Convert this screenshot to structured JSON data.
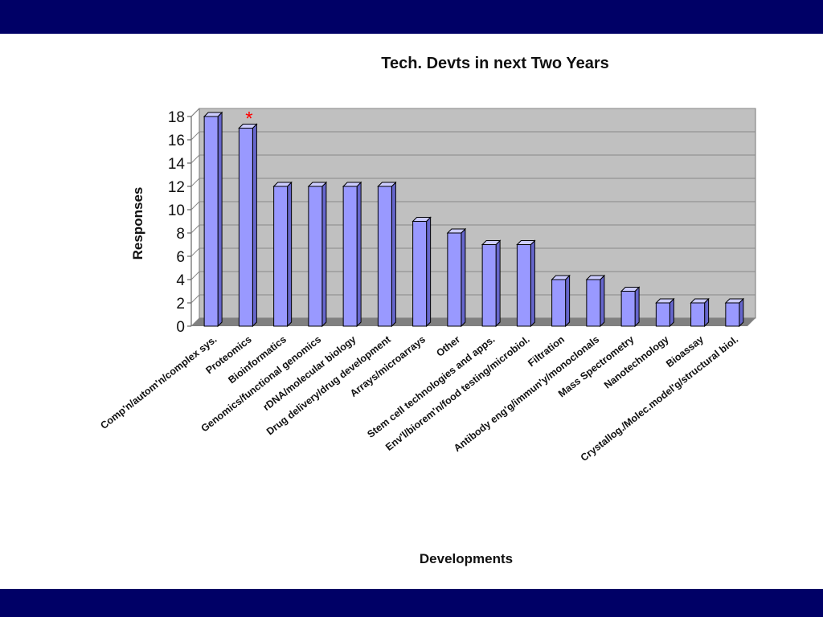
{
  "theme": {
    "band_color": "#000066",
    "bar_front": "#9999ff",
    "bar_side": "#6666cc",
    "bar_top": "#ccccff",
    "plot_back": "#c0c0c0",
    "plot_floor": "#808080",
    "marker_color": "#ff0000"
  },
  "chart_data": {
    "type": "bar",
    "title": "Tech. Devts in next Two Years",
    "xlabel": "Developments",
    "ylabel": "Responses",
    "ylim": [
      0,
      18
    ],
    "yticks": [
      0,
      2,
      4,
      6,
      8,
      10,
      12,
      14,
      16,
      18
    ],
    "grid": true,
    "categories": [
      "Comp'n/autom'n/complex sys.",
      "Proteomics",
      "Bioinformatics",
      "Genomics/functional genomics",
      "rDNA/molecular biology",
      "Drug delivery/drug development",
      "Arrays/microarrays",
      "Other",
      "Stem cell technologies and apps.",
      "Env'l/biorem'n/food testing/microbiol.",
      "Filtration",
      "Antibody eng'g/immun'y/monoclonals",
      "Mass Spectrometry",
      "Nanotechnology",
      "Bioassay",
      "Crystallog./Molec.model'g/structural biol."
    ],
    "values": [
      18,
      17,
      12,
      12,
      12,
      12,
      9,
      8,
      7,
      7,
      4,
      4,
      3,
      2,
      2,
      2
    ],
    "annotations": [
      {
        "category_index": 1,
        "text": "*"
      }
    ]
  }
}
